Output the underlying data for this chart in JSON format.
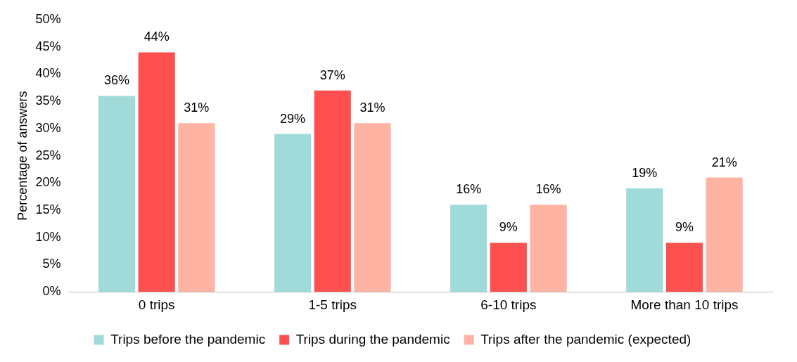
{
  "chart_data": {
    "type": "bar",
    "ylabel": "Percentage of answers",
    "categories": [
      "0 trips",
      "1-5 trips",
      "6-10 trips",
      "More than 10 trips"
    ],
    "series": [
      {
        "name": "Trips before the pandemic",
        "color": "#a1dbd9",
        "values": [
          36,
          29,
          16,
          19
        ],
        "value_labels": [
          "36%",
          "29%",
          "16%",
          "19%"
        ]
      },
      {
        "name": "Trips during the pandemic",
        "color": "#ff5050",
        "values": [
          44,
          37,
          9,
          9
        ],
        "value_labels": [
          "44%",
          "37%",
          "9%",
          "9%"
        ]
      },
      {
        "name": "Trips after the pandemic (expected)",
        "color": "#ffb3a3",
        "values": [
          31,
          31,
          16,
          21
        ],
        "value_labels": [
          "31%",
          "31%",
          "16%",
          "21%"
        ]
      }
    ],
    "ylim": [
      0,
      50
    ],
    "yticks": [
      {
        "value": 0,
        "label": "0%"
      },
      {
        "value": 5,
        "label": "5%"
      },
      {
        "value": 10,
        "label": "10%"
      },
      {
        "value": 15,
        "label": "15%"
      },
      {
        "value": 20,
        "label": "20%"
      },
      {
        "value": 25,
        "label": "25%"
      },
      {
        "value": 30,
        "label": "30%"
      },
      {
        "value": 35,
        "label": "35%"
      },
      {
        "value": 40,
        "label": "40%"
      },
      {
        "value": 45,
        "label": "45%"
      },
      {
        "value": 50,
        "label": "50%"
      }
    ],
    "grid": false,
    "legend": "bottom"
  }
}
